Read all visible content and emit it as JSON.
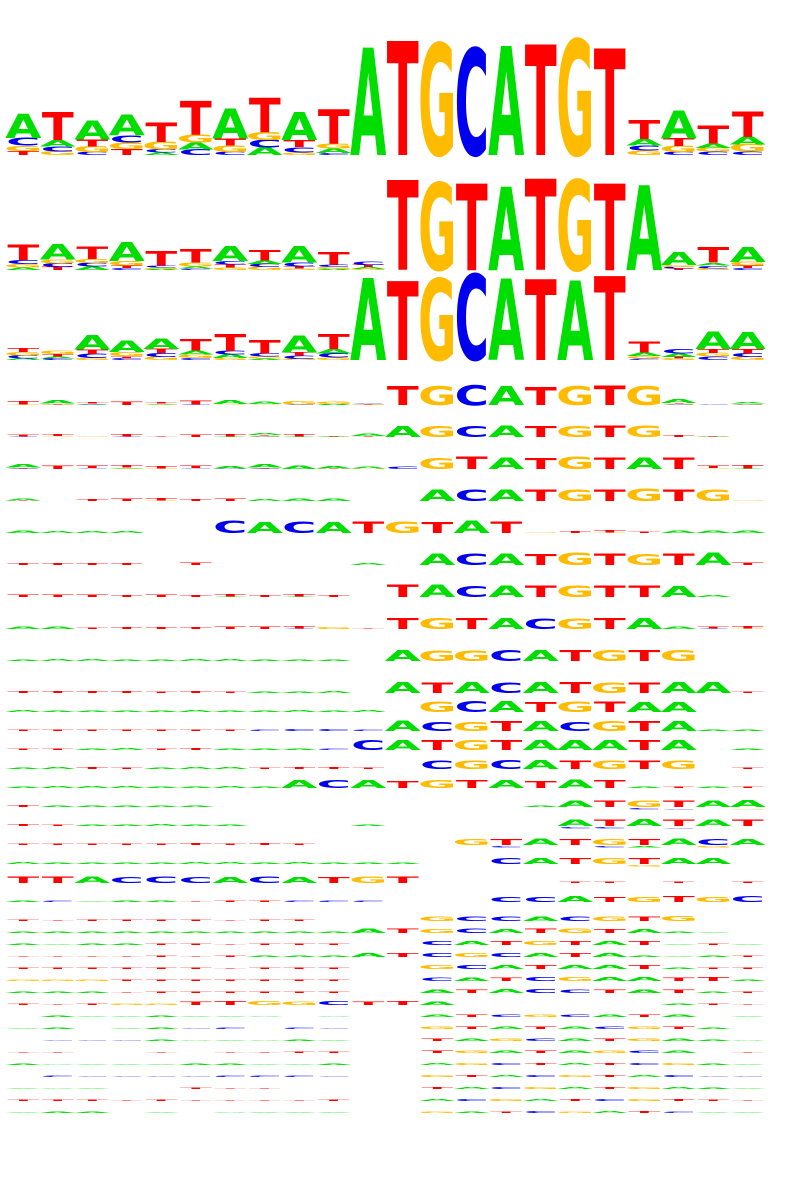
{
  "chart_data": {
    "type": "sequence-logo-stack",
    "alphabet": [
      "A",
      "C",
      "G",
      "T"
    ],
    "colors": {
      "A": "#00dd00",
      "C": "#0000ee",
      "G": "#ffbb00",
      "T": "#ff0000"
    },
    "grid": false,
    "motifs": [
      {
        "name": "",
        "core": "ATGCATGT",
        "core_start": 10,
        "core_strength": 1.0,
        "flank_strength": 0.35,
        "background": "ATAATTATATCCA.ATATTATT"
      },
      {
        "name": "",
        "core": "TGTATGTA",
        "core_start": 11,
        "core_strength": 1.0,
        "flank_strength": 0.25,
        "background": "TATATTATAT.TATA.ATAATA"
      },
      {
        "name": "",
        "core": "ATGCATAT",
        "core_start": 10,
        "core_strength": 0.95,
        "flank_strength": 0.25,
        "background": "..AAATTTAT..AAAATAT.AA"
      },
      {
        "name": "",
        "core": "TGCATGTG",
        "core_start": 11,
        "core_strength": 0.5,
        "flank_strength": 0.12,
        "background": "TA.T.TAAGG...GA..TTA.."
      },
      {
        "name": "",
        "core": "AGCATGTG",
        "core_start": 11,
        "core_strength": 0.3,
        "flank_strength": 0.1,
        "background": "TT.T.TTAT.A....TT.TT.."
      },
      {
        "name": "",
        "core": "GTATGTAT",
        "core_start": 12,
        "core_strength": 0.3,
        "flank_strength": 0.1,
        "background": "ATTTTTAAAAACC....T.TTT"
      },
      {
        "name": "",
        "core": "ACATGTGTG",
        "core_start": 12,
        "core_strength": 0.3,
        "flank_strength": 0.08,
        "background": "A.TTTTTAAA........A..."
      },
      {
        "name": "",
        "core": "CACATGTAT",
        "core_start": 6,
        "core_strength": 0.3,
        "flank_strength": 0.08,
        "background": "AAAA......ATT.T.TTTAAA"
      },
      {
        "name": "",
        "core": "ACATGTGTA",
        "core_start": 12,
        "core_strength": 0.3,
        "flank_strength": 0.07,
        "background": "TTTT.T....A...A.AAAATT"
      },
      {
        "name": "",
        "core": "TACATGTTA",
        "core_start": 11,
        "core_strength": 0.3,
        "flank_strength": 0.08,
        "background": "TTTTTTTTTT.....A.TTAA."
      },
      {
        "name": "",
        "core": "TGTACGTA",
        "core_start": 11,
        "core_strength": 0.28,
        "flank_strength": 0.08,
        "background": "AATTTTTTTG.....A..AATT"
      },
      {
        "name": "",
        "core": "AGGCATGTG",
        "core_start": 11,
        "core_strength": 0.28,
        "flank_strength": 0.06,
        "background": "AAAAAAAAAA....CAAT.T.."
      },
      {
        "name": "",
        "core": "ATACATGTAA",
        "core_start": 11,
        "core_strength": 0.28,
        "flank_strength": 0.06,
        "background": "TTTTTTTAAA.....TT.A.TT"
      },
      {
        "name": "",
        "core": "GCATGTAA",
        "core_start": 12,
        "core_strength": 0.27,
        "flank_strength": 0.05,
        "background": "AAAAAAAAAAA...T.T.TT.."
      },
      {
        "name": "",
        "core": "ACGTACGTA",
        "core_start": 11,
        "core_strength": 0.25,
        "flank_strength": 0.05,
        "background": "TTTTTTTCCCC.....A..TAA"
      },
      {
        "name": "",
        "core": "CATGTAAATA",
        "core_start": 10,
        "core_strength": 0.25,
        "flank_strength": 0.05,
        "background": "TTAATTAAACC......AA..A"
      },
      {
        "name": "",
        "core": "CGCATGTG",
        "core_start": 12,
        "core_strength": 0.22,
        "flank_strength": 0.05,
        "background": "AATTAAATTTT.....T..T.T"
      },
      {
        "name": "",
        "core": "ACATGTATAT",
        "core_start": 8,
        "core_strength": 0.2,
        "flank_strength": 0.05,
        "background": "AAAAAAAA......TTACATAT"
      },
      {
        "name": "",
        "core": "ATGTAACA",
        "core_start": 16,
        "core_strength": 0.18,
        "flank_strength": 0.05,
        "background": "TAAAAA.........ACACCTT"
      },
      {
        "name": "",
        "core": "ATATATAT",
        "core_start": 16,
        "core_strength": 0.17,
        "flank_strength": 0.05,
        "background": "TTAAAAA...A.....TATT.C"
      },
      {
        "name": "",
        "core": "GTATGTACA",
        "core_start": 13,
        "core_strength": 0.16,
        "flank_strength": 0.05,
        "background": "TTTTTTTTT...........TT"
      },
      {
        "name": "",
        "core": "CATGTAA",
        "core_start": 14,
        "core_strength": 0.15,
        "flank_strength": 0.05,
        "background": "AAAAAAAAAAAA...A.A.AA."
      },
      {
        "name": "",
        "core": "TTACCCACATGT",
        "core_start": 0,
        "core_strength": 0.16,
        "flank_strength": 0.04,
        "background": "TTACCCACAT......TT.T.T"
      },
      {
        "name": "",
        "core": "CCATGTGCA",
        "core_start": 14,
        "core_strength": 0.14,
        "flank_strength": 0.04,
        "background": "ACAAATTTCCC.....AA.ATA"
      },
      {
        "name": "",
        "core": "GCCACGTG",
        "core_start": 12,
        "core_strength": 0.12,
        "flank_strength": 0.04,
        "background": "TTTTTTTTT........TT..."
      },
      {
        "name": "",
        "core": "ATGCATGTA",
        "core_start": 10,
        "core_strength": 0.11,
        "flank_strength": 0.04,
        "background": "AAAAAAAAAA.........AA."
      },
      {
        "name": "",
        "core": "CATGTAT",
        "core_start": 12,
        "core_strength": 0.1,
        "flank_strength": 0.04,
        "background": "AAAATTTTTT.......AAATA"
      },
      {
        "name": "",
        "core": "ATCGCATA",
        "core_start": 10,
        "core_strength": 0.1,
        "flank_strength": 0.04,
        "background": "TTTTTTTAAA........AAAT"
      },
      {
        "name": "",
        "core": "GCATAAT",
        "core_start": 12,
        "core_strength": 0.1,
        "flank_strength": 0.04,
        "background": "TTTTTTTTTT.........ATT"
      },
      {
        "name": "",
        "core": "CATCGAATT",
        "core_start": 12,
        "core_strength": 0.09,
        "flank_strength": 0.04,
        "background": "GGGTTTTTTT.........TTA"
      },
      {
        "name": "",
        "core": "ATACCTAT",
        "core_start": 12,
        "core_strength": 0.09,
        "flank_strength": 0.04,
        "background": "AAATTTTTTT........AAAT"
      },
      {
        "name": "",
        "core": "TTGGCTTA",
        "core_start": 5,
        "core_strength": 0.09,
        "flank_strength": 0.04,
        "background": "TTTGGGCTAA.........ATT"
      },
      {
        "name": "",
        "core": "ATCGCATA",
        "core_start": 12,
        "core_strength": 0.07,
        "flank_strength": 0.03,
        "background": "AAAAAAAAAA...........A"
      },
      {
        "name": "",
        "core": "GTATACGT",
        "core_start": 12,
        "core_strength": 0.06,
        "flank_strength": 0.03,
        "background": "AAAAACCCCC.........AAA"
      },
      {
        "name": "",
        "core": "TAGCATGA",
        "core_start": 12,
        "core_strength": 0.06,
        "flank_strength": 0.03,
        "background": "CCCCAAAAAA.........AAA"
      },
      {
        "name": "",
        "core": "TGATAGCA",
        "core_start": 12,
        "core_strength": 0.06,
        "flank_strength": 0.03,
        "background": "TTTTTTTTTT...........T"
      },
      {
        "name": "",
        "core": "AGCTATCG",
        "core_start": 12,
        "core_strength": 0.05,
        "flank_strength": 0.03,
        "background": "AAAAAAAAAA.........AAA"
      },
      {
        "name": "",
        "core": "GTACGTAC",
        "core_start": 12,
        "core_strength": 0.05,
        "flank_strength": 0.03,
        "background": "CCCCCCCCCC.........CCC"
      },
      {
        "name": "",
        "core": "TACGATGA",
        "core_start": 12,
        "core_strength": 0.05,
        "flank_strength": 0.03,
        "background": "AAAAATTTTT.........AAA"
      },
      {
        "name": "",
        "core": "ACGATCGT",
        "core_start": 12,
        "core_strength": 0.05,
        "flank_strength": 0.03,
        "background": "TTTTTTTTTT.........TTT"
      },
      {
        "name": "",
        "core": "GATCGATC",
        "core_start": 12,
        "core_strength": 0.04,
        "flank_strength": 0.03,
        "background": "AAAAAAAAAA.........AAA"
      }
    ]
  }
}
